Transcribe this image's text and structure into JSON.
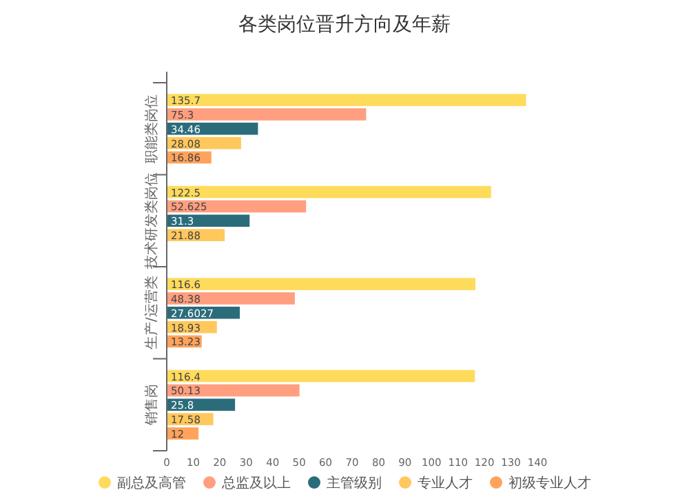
{
  "chart_data": {
    "type": "bar",
    "orientation": "horizontal",
    "title": "各类岗位晋升方向及年薪",
    "categories": [
      "职能类岗位",
      "技术研发类岗位",
      "生产/运营类",
      "销售岗"
    ],
    "series": [
      {
        "name": "副总及高管",
        "color": "#ffdb5c",
        "values": [
          135.7,
          122.5,
          116.6,
          116.4
        ]
      },
      {
        "name": "总监及以上",
        "color": "#ff9f7f",
        "values": [
          75.3,
          52.625,
          48.38,
          50.13
        ]
      },
      {
        "name": "主管级别",
        "color": "#2b6c7b",
        "values": [
          34.46,
          31.3,
          27.6027,
          25.8
        ]
      },
      {
        "name": "专业人才",
        "color": "#ffc85c",
        "values": [
          28.08,
          21.88,
          18.93,
          17.58
        ]
      },
      {
        "name": "初级专业人才",
        "color": "#ffa35c",
        "values": [
          16.86,
          null,
          13.23,
          12
        ]
      }
    ],
    "xlim": [
      0,
      140
    ],
    "xticks": [
      0,
      10,
      20,
      30,
      40,
      50,
      60,
      70,
      80,
      90,
      100,
      110,
      120,
      130,
      140
    ],
    "data_labels": true,
    "legend": "bottom",
    "grid": false
  }
}
